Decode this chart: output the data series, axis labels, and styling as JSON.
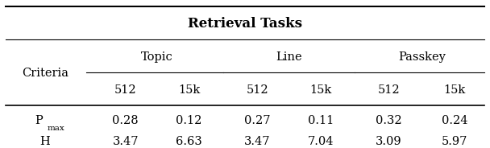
{
  "title": "Retrieval Tasks",
  "col_groups": [
    {
      "label": "Topic"
    },
    {
      "label": "Line"
    },
    {
      "label": "Passkey"
    }
  ],
  "row_label_col": "Criteria",
  "sub_labels": [
    "512",
    "15k",
    "512",
    "15k",
    "512",
    "15k"
  ],
  "rows": [
    {
      "label": "P_max",
      "values": [
        "0.28",
        "0.12",
        "0.27",
        "0.11",
        "0.32",
        "0.24"
      ]
    },
    {
      "label": "H",
      "values": [
        "3.47",
        "6.63",
        "3.47",
        "7.04",
        "3.09",
        "5.97"
      ]
    }
  ],
  "background_color": "#ffffff",
  "text_color": "#000000"
}
